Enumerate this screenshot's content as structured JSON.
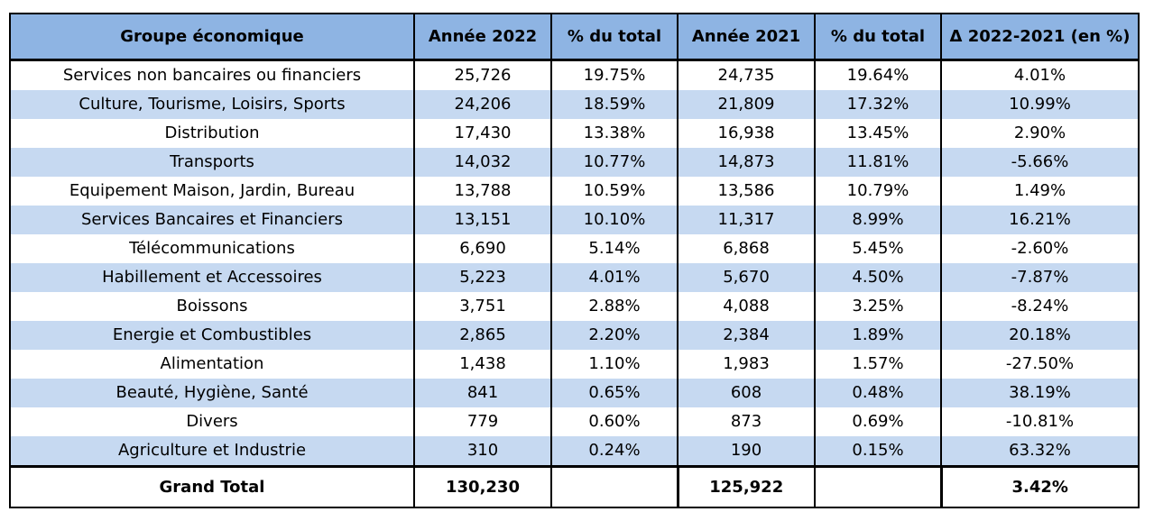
{
  "columns": [
    "Groupe économique",
    "Année 2022",
    "% du total",
    "Année 2021",
    "% du total",
    "Δ 2022-2021 (en %)"
  ],
  "rows": [
    [
      "Services non bancaires ou financiers",
      "25,726",
      "19.75%",
      "24,735",
      "19.64%",
      "4.01%"
    ],
    [
      "Culture, Tourisme, Loisirs, Sports",
      "24,206",
      "18.59%",
      "21,809",
      "17.32%",
      "10.99%"
    ],
    [
      "Distribution",
      "17,430",
      "13.38%",
      "16,938",
      "13.45%",
      "2.90%"
    ],
    [
      "Transports",
      "14,032",
      "10.77%",
      "14,873",
      "11.81%",
      "-5.66%"
    ],
    [
      "Equipement Maison, Jardin, Bureau",
      "13,788",
      "10.59%",
      "13,586",
      "10.79%",
      "1.49%"
    ],
    [
      "Services Bancaires et Financiers",
      "13,151",
      "10.10%",
      "11,317",
      "8.99%",
      "16.21%"
    ],
    [
      "Télécommunications",
      "6,690",
      "5.14%",
      "6,868",
      "5.45%",
      "-2.60%"
    ],
    [
      "Habillement et Accessoires",
      "5,223",
      "4.01%",
      "5,670",
      "4.50%",
      "-7.87%"
    ],
    [
      "Boissons",
      "3,751",
      "2.88%",
      "4,088",
      "3.25%",
      "-8.24%"
    ],
    [
      "Energie et Combustibles",
      "2,865",
      "2.20%",
      "2,384",
      "1.89%",
      "20.18%"
    ],
    [
      "Alimentation",
      "1,438",
      "1.10%",
      "1,983",
      "1.57%",
      "-27.50%"
    ],
    [
      "Beauté, Hygiène, Santé",
      "841",
      "0.65%",
      "608",
      "0.48%",
      "38.19%"
    ],
    [
      "Divers",
      "779",
      "0.60%",
      "873",
      "0.69%",
      "-10.81%"
    ],
    [
      "Agriculture et Industrie",
      "310",
      "0.24%",
      "190",
      "0.15%",
      "63.32%"
    ]
  ],
  "total": {
    "label": "Grand Total",
    "year_2022": "130,230",
    "year_2021": "125,922",
    "delta": "3.42%"
  },
  "colors": {
    "header_bg": "#8eb4e3",
    "alt_row_bg": "#c6d9f1",
    "border": "#000000"
  }
}
